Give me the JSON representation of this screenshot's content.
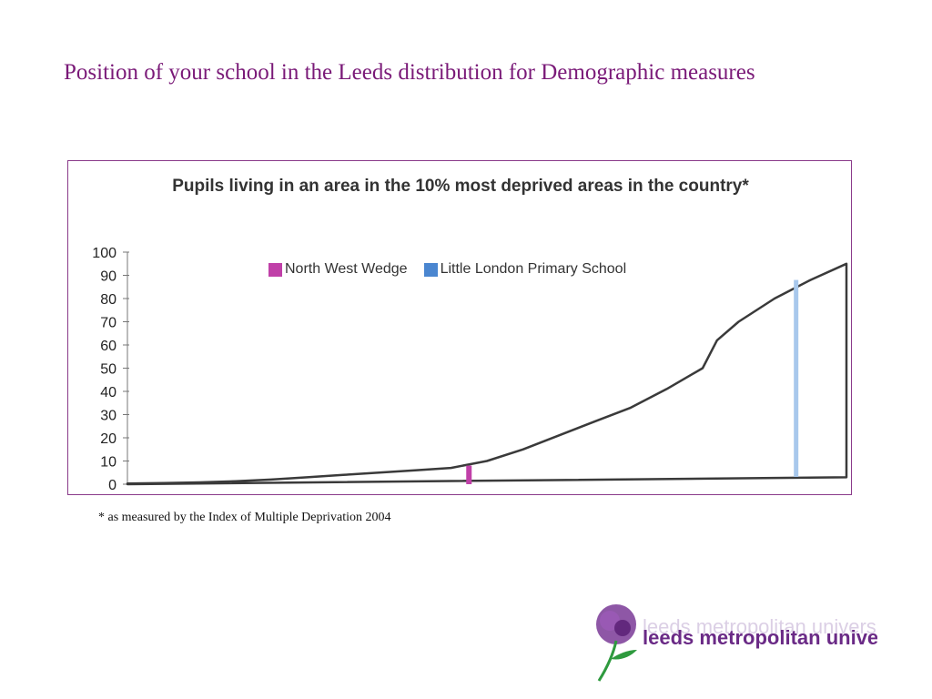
{
  "slide": {
    "title": "Position of your school in the Leeds distribution for Demographic measures",
    "footnote": "* as measured by the Index of Multiple Deprivation 2004"
  },
  "logo": {
    "text": "leeds metropolitan university",
    "color": "#6a2a86",
    "stem_color": "#2e9a3e"
  },
  "chart_data": {
    "type": "area",
    "title": "Pupils living in an area in the 10% most deprived areas in the country*",
    "ylim": [
      0,
      100
    ],
    "yticks": [
      0,
      10,
      20,
      30,
      40,
      50,
      60,
      70,
      80,
      90,
      100
    ],
    "grid": false,
    "legend_position": "top",
    "legend": [
      {
        "label": "North West Wedge",
        "color": "#c040a8"
      },
      {
        "label": "Little London Primary School",
        "color": "#4a86d0"
      }
    ],
    "markers": [
      {
        "label": "North West Wedge",
        "x": 0.475,
        "value": 8,
        "color": "#c040a8"
      },
      {
        "label": "Little London Primary School",
        "x": 0.93,
        "value": 88,
        "color": "#a8c8ec"
      }
    ],
    "x": [
      0,
      0.05,
      0.1,
      0.15,
      0.2,
      0.25,
      0.3,
      0.35,
      0.4,
      0.45,
      0.5,
      0.55,
      0.6,
      0.65,
      0.7,
      0.75,
      0.8,
      0.82,
      0.85,
      0.9,
      0.95,
      1.0
    ],
    "values": [
      0.3,
      0.5,
      0.8,
      1.3,
      2,
      3,
      4,
      5,
      6,
      7,
      10,
      15,
      21,
      27,
      33,
      41,
      50,
      62,
      70,
      80,
      88,
      95
    ]
  }
}
